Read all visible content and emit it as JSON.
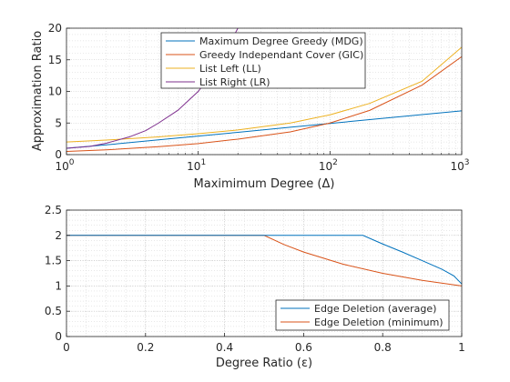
{
  "chart_data": [
    {
      "type": "line",
      "xscale": "log",
      "xlim": [
        1,
        1000
      ],
      "ylim": [
        0,
        20
      ],
      "grid": true,
      "legend_position": "top-center",
      "xlabel": "Maximimum Degree (Δ)",
      "ylabel": "Approximation Ratio",
      "xticks": [
        {
          "base": "10",
          "exp": "0",
          "value": 1
        },
        {
          "base": "10",
          "exp": "1",
          "value": 10
        },
        {
          "base": "10",
          "exp": "2",
          "value": 100
        },
        {
          "base": "10",
          "exp": "3",
          "value": 1000
        }
      ],
      "yticks": [
        "0",
        "5",
        "10",
        "15",
        "20"
      ],
      "series": [
        {
          "name": "Maximum Degree Greedy (MDG)",
          "color": "#0072BD",
          "x": [
            1,
            2,
            5,
            10,
            20,
            50,
            100,
            200,
            500,
            1000
          ],
          "y": [
            1.0,
            1.54,
            2.33,
            2.93,
            3.53,
            4.33,
            4.93,
            5.54,
            6.33,
            6.93
          ]
        },
        {
          "name": "Greedy Independant Cover (GIC)",
          "color": "#D95319",
          "x": [
            1,
            2,
            5,
            10,
            20,
            50,
            100,
            200,
            500,
            1000
          ],
          "y": [
            0.5,
            0.75,
            1.25,
            1.75,
            2.45,
            3.6,
            5.0,
            7.0,
            11.0,
            15.5
          ]
        },
        {
          "name": "List Left (LL)",
          "color": "#EDB120",
          "x": [
            1,
            2,
            5,
            10,
            20,
            50,
            100,
            200,
            500,
            1000
          ],
          "y": [
            2.0,
            2.3,
            2.8,
            3.3,
            3.9,
            5.0,
            6.3,
            8.1,
            11.6,
            17.0
          ]
        },
        {
          "name": "List Right (LR)",
          "color": "#7E2F8E",
          "x": [
            1,
            1.5,
            2,
            3,
            4,
            5,
            7,
            10,
            14,
            20
          ],
          "y": [
            1.0,
            1.3,
            1.8,
            2.8,
            3.8,
            5.0,
            7.0,
            10.0,
            14.0,
            20.0
          ]
        }
      ]
    },
    {
      "type": "line",
      "xlim": [
        0,
        1
      ],
      "ylim": [
        0,
        2.5
      ],
      "grid": true,
      "legend_position": "bottom-right",
      "xlabel": "Degree Ratio (ε)",
      "ylabel": "",
      "xticks": [
        "0",
        "0.2",
        "0.4",
        "0.6",
        "0.8",
        "1"
      ],
      "yticks": [
        "0",
        "0.5",
        "1",
        "1.5",
        "2",
        "2.5"
      ],
      "series": [
        {
          "name": "Edge Deletion (average)",
          "color": "#0072BD",
          "x": [
            0,
            0.5,
            0.75,
            0.8,
            0.85,
            0.9,
            0.95,
            0.98,
            1.0
          ],
          "y": [
            2.0,
            2.0,
            2.0,
            1.83,
            1.67,
            1.5,
            1.33,
            1.2,
            1.04
          ]
        },
        {
          "name": "Edge Deletion (minimum)",
          "color": "#D95319",
          "x": [
            0,
            0.5,
            0.55,
            0.6,
            0.7,
            0.8,
            0.9,
            1.0
          ],
          "y": [
            2.0,
            2.0,
            1.82,
            1.67,
            1.43,
            1.25,
            1.11,
            1.0
          ]
        }
      ]
    }
  ]
}
